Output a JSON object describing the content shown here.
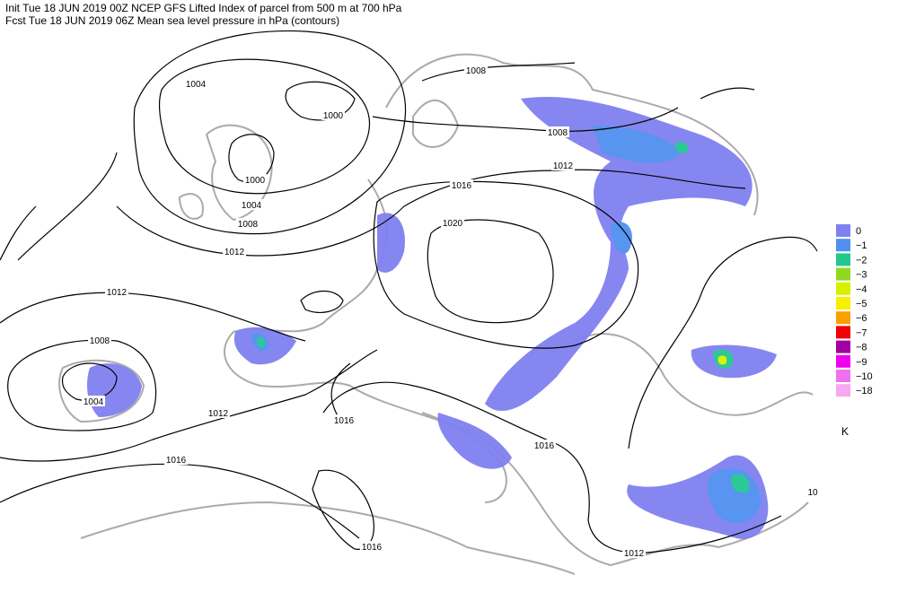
{
  "header": {
    "line1": "Init  Tue 18 JUN 2019 00Z  NCEP GFS Lifted Index of parcel from 500 m at 700 hPa",
    "line2": "Fcst Tue 18 JUN 2019 06Z  Mean sea level pressure in hPa (contours)"
  },
  "legend": {
    "items": [
      {
        "label": "0",
        "color": "#8080f0"
      },
      {
        "label": "−1",
        "color": "#5090f0"
      },
      {
        "label": "−2",
        "color": "#20c890"
      },
      {
        "label": "−3",
        "color": "#90d820"
      },
      {
        "label": "−4",
        "color": "#d8f000"
      },
      {
        "label": "−5",
        "color": "#f8f000"
      },
      {
        "label": "−6",
        "color": "#f8a000"
      },
      {
        "label": "−7",
        "color": "#f00000"
      },
      {
        "label": "−8",
        "color": "#a000a0"
      },
      {
        "label": "−9",
        "color": "#f000f0"
      },
      {
        "label": "−10",
        "color": "#f070f0"
      },
      {
        "label": "−18",
        "color": "#f8a8f0"
      }
    ],
    "unit": "K"
  },
  "contour_labels": [
    "1004",
    "1000",
    "1000",
    "1004",
    "1008",
    "1012",
    "1012",
    "1008",
    "1004",
    "1012",
    "1016",
    "1016",
    "1016",
    "1016",
    "1012",
    "1008",
    "1008",
    "1012",
    "1016",
    "1020",
    "10"
  ]
}
